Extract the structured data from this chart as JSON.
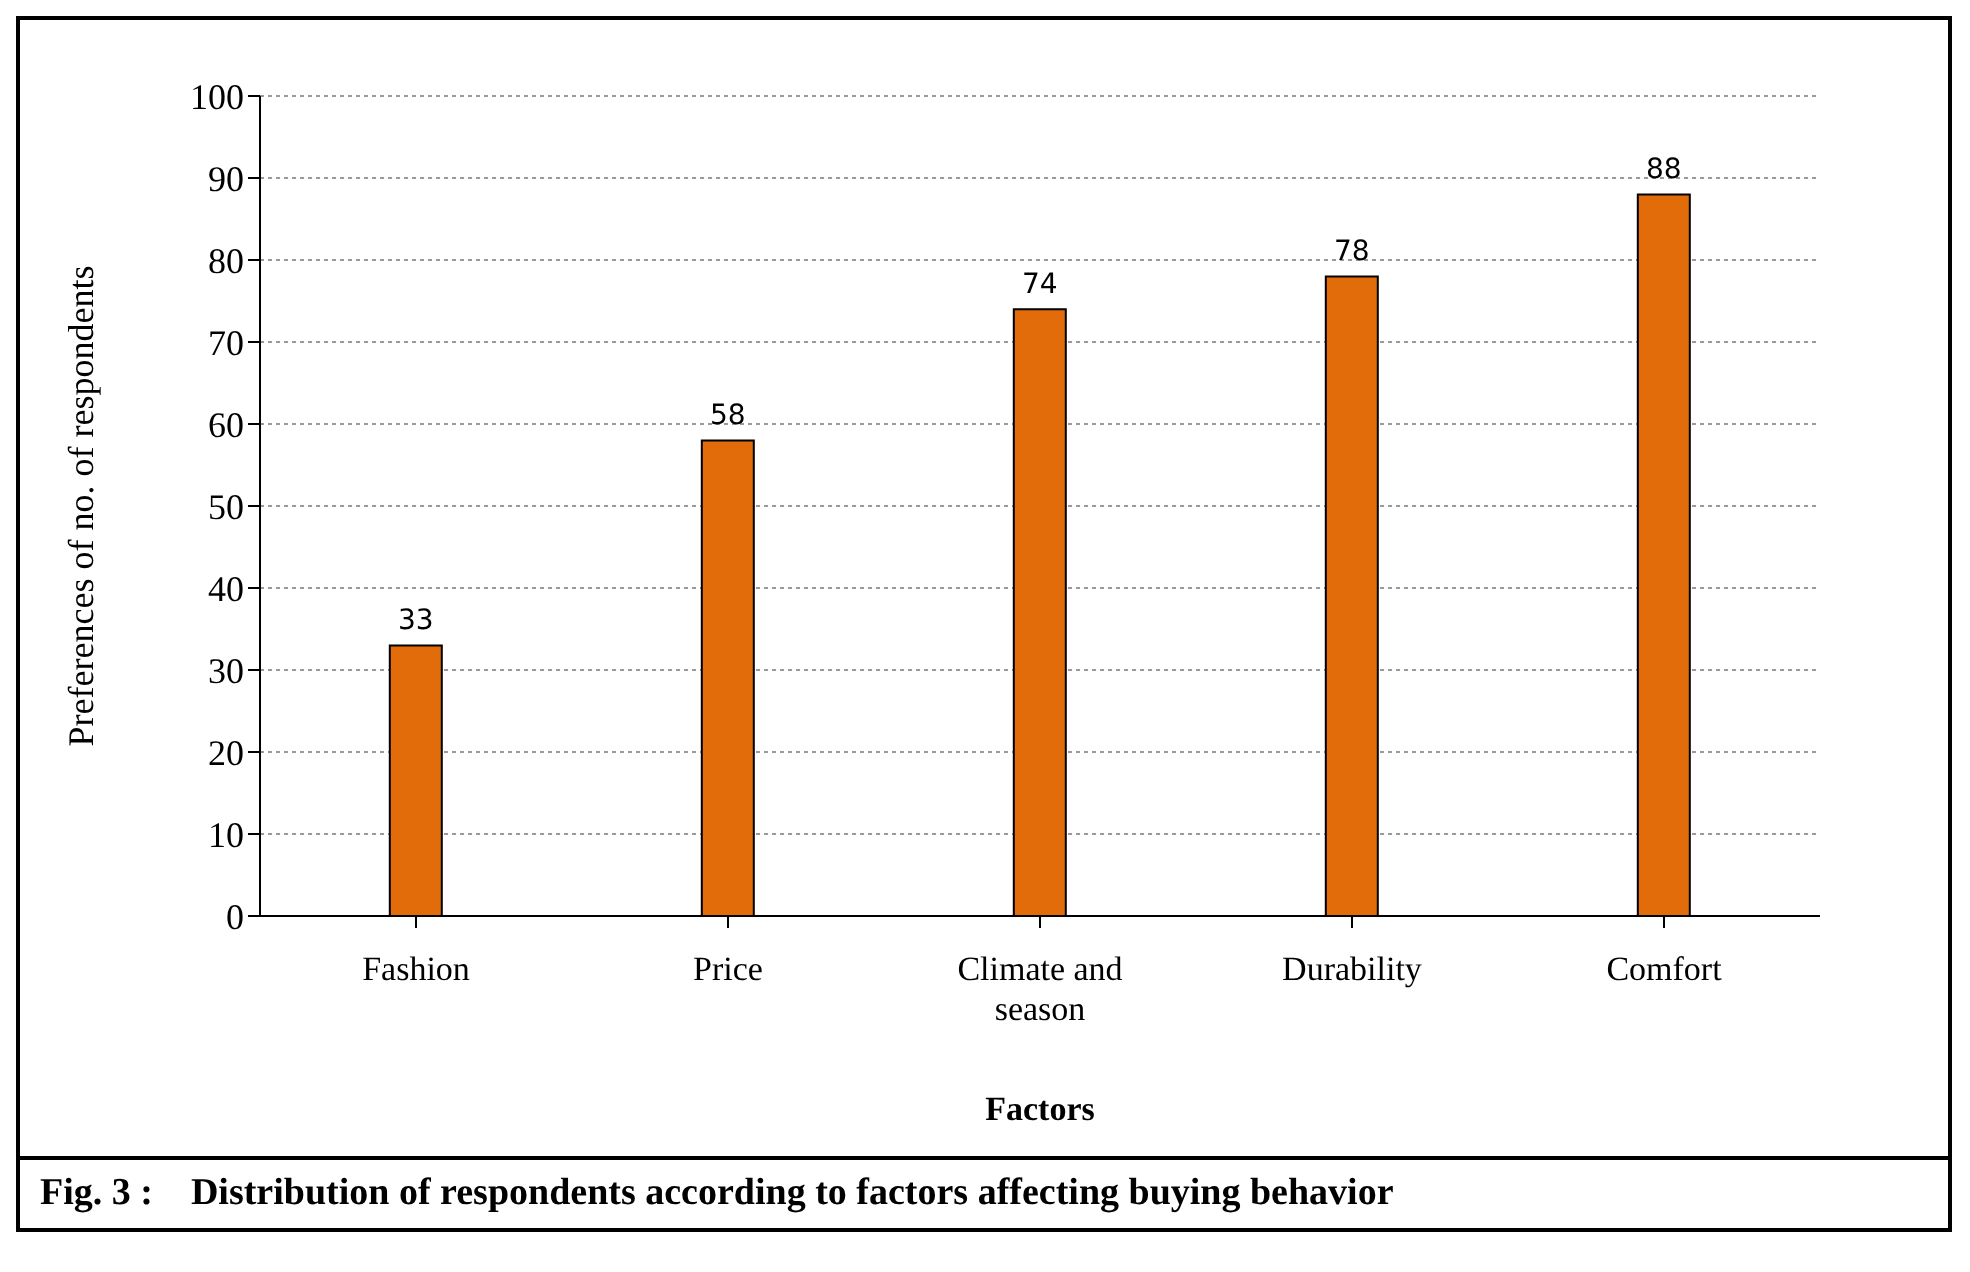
{
  "chart_data": {
    "type": "bar",
    "title": "Fig. 3 :    Distribution of respondents according to factors affecting buying behavior",
    "xlabel": "Factors",
    "ylabel": "Preferences of no. of respondents",
    "categories": [
      "Fashion",
      "Price",
      "Climate and season",
      "Durability",
      "Comfort"
    ],
    "values": [
      33,
      58,
      74,
      78,
      88
    ],
    "color": "#e36c0a",
    "ylim": [
      0,
      100
    ],
    "yticks": [
      0,
      10,
      20,
      30,
      40,
      50,
      60,
      70,
      80,
      90,
      100
    ],
    "grid": "y",
    "data_labels": true
  }
}
